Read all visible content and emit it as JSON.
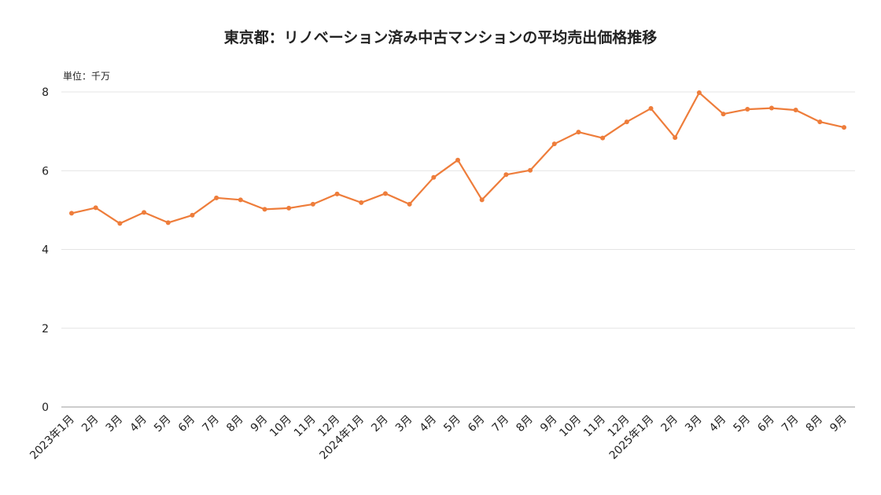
{
  "chart_data": {
    "type": "line",
    "title": "東京都：リノベーション済み中古マンションの平均売出価格推移",
    "unit_label": "単位：千万",
    "xlabel": "",
    "ylabel": "",
    "ylim": [
      0,
      8
    ],
    "yticks": [
      0,
      2,
      4,
      6,
      8
    ],
    "grid": true,
    "line_color": "#ee7d3b",
    "categories": [
      "2023年1月",
      "2月",
      "3月",
      "4月",
      "5月",
      "6月",
      "7月",
      "8月",
      "9月",
      "10月",
      "11月",
      "12月",
      "2024年1月",
      "2月",
      "3月",
      "4月",
      "5月",
      "6月",
      "7月",
      "8月",
      "9月",
      "10月",
      "11月",
      "12月",
      "2025年1月",
      "2月",
      "3月",
      "4月",
      "5月",
      "6月",
      "7月",
      "8月",
      "9月"
    ],
    "series": [
      {
        "values": [
          4.92,
          5.06,
          4.66,
          4.94,
          4.68,
          4.87,
          5.31,
          5.26,
          5.02,
          5.05,
          5.15,
          5.41,
          5.19,
          5.42,
          5.15,
          5.83,
          6.27,
          5.26,
          5.9,
          6.01,
          6.68,
          6.98,
          6.83,
          7.24,
          7.58,
          6.84,
          7.98,
          7.44,
          7.56,
          7.59,
          7.54,
          7.24,
          7.1
        ]
      }
    ]
  }
}
